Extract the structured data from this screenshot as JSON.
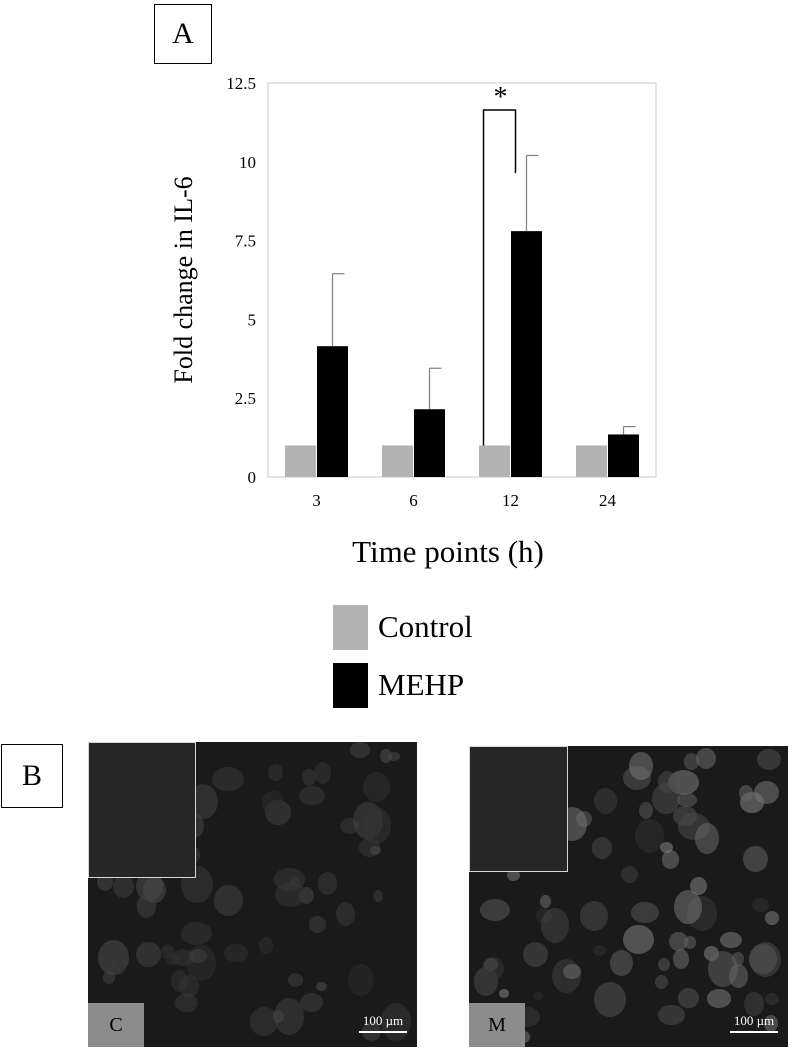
{
  "panel_a_label": "A",
  "panel_b_label": "B",
  "chart_data": {
    "type": "bar",
    "title": "",
    "xlabel": "Time points (h)",
    "ylabel": "Fold change in IL-6",
    "categories": [
      "3",
      "6",
      "12",
      "24"
    ],
    "ylim": [
      0,
      12.5
    ],
    "yticks": [
      "0",
      "2.5",
      "5",
      "7.5",
      "10",
      "12.5"
    ],
    "grid": false,
    "legend_position": "bottom",
    "series": [
      {
        "name": "Control",
        "color": "#b3b3b3",
        "values": [
          1.0,
          1.0,
          1.0,
          1.0
        ],
        "errors": [
          0,
          0,
          0,
          0
        ]
      },
      {
        "name": "MEHP",
        "color": "#000000",
        "values": [
          4.15,
          2.15,
          7.8,
          1.35
        ],
        "errors": [
          2.3,
          1.3,
          2.4,
          0.25
        ]
      }
    ],
    "annotations": [
      {
        "text": "*",
        "category": "12",
        "between": [
          "Control",
          "MEHP"
        ]
      }
    ]
  },
  "legend": {
    "control_label": "Control",
    "mehp_label": "MEHP",
    "control_color": "#b3b3b3",
    "mehp_color": "#000000"
  },
  "micrographs": {
    "control_label": "C",
    "mehp_label": "M",
    "scale_bar_text": "100 µm"
  }
}
